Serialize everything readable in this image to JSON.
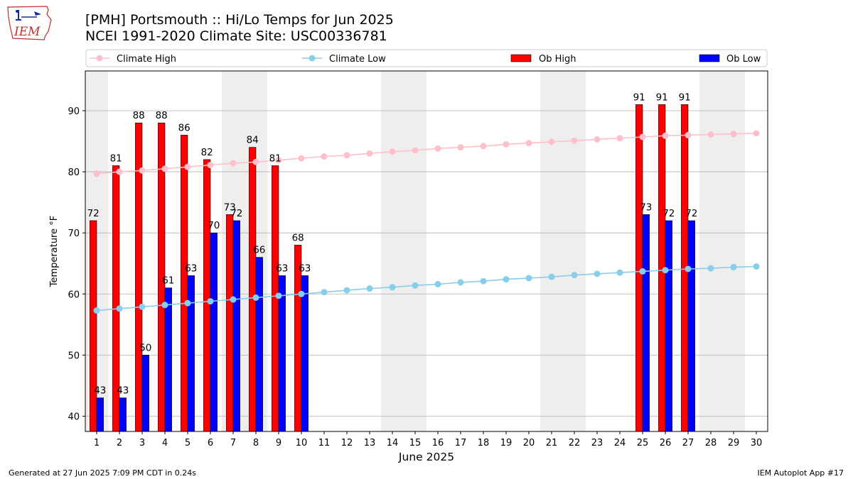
{
  "header": {
    "title_line1": "[PMH] Portsmouth :: Hi/Lo Temps for Jun 2025",
    "title_line2": "NCEI 1991-2020 Climate Site: USC00336781"
  },
  "logo": {
    "text": "IEM"
  },
  "footer": {
    "generated": "Generated at 27 Jun 2025 7:09 PM CDT in 0.24s",
    "app": "IEM Autoplot App #17"
  },
  "colors": {
    "ob_high": "#ff0000",
    "ob_low": "#0000ff",
    "climate_high": "#ffc0cb",
    "climate_low": "#87ceeb",
    "weekend_shade": "#eeeeee",
    "grid": "#b0b0b0"
  },
  "chart_data": {
    "type": "bar",
    "title": "[PMH] Portsmouth :: Hi/Lo Temps for Jun 2025",
    "subtitle": "NCEI 1991-2020 Climate Site: USC00336781",
    "xlabel": "June 2025",
    "ylabel": "Temperature °F",
    "ylim": [
      37.5,
      96.5
    ],
    "yticks": [
      40,
      50,
      60,
      70,
      80,
      90
    ],
    "grid": true,
    "legend_placement": "top",
    "categories": [
      "1",
      "2",
      "3",
      "4",
      "5",
      "6",
      "7",
      "8",
      "9",
      "10",
      "11",
      "12",
      "13",
      "14",
      "15",
      "16",
      "17",
      "18",
      "19",
      "20",
      "21",
      "22",
      "23",
      "24",
      "25",
      "26",
      "27",
      "28",
      "29",
      "30"
    ],
    "shaded_days": [
      1,
      7,
      8,
      14,
      15,
      21,
      22,
      28,
      29
    ],
    "series": [
      {
        "name": "Climate High",
        "kind": "line",
        "values": [
          79.7,
          80.0,
          80.2,
          80.5,
          80.8,
          81.1,
          81.4,
          81.6,
          81.9,
          82.2,
          82.5,
          82.7,
          83.0,
          83.3,
          83.5,
          83.8,
          84.0,
          84.2,
          84.5,
          84.7,
          84.9,
          85.1,
          85.3,
          85.5,
          85.7,
          85.9,
          86.0,
          86.1,
          86.2,
          86.3
        ]
      },
      {
        "name": "Climate Low",
        "kind": "line",
        "values": [
          57.3,
          57.6,
          57.9,
          58.2,
          58.5,
          58.8,
          59.1,
          59.4,
          59.7,
          60.0,
          60.3,
          60.6,
          60.9,
          61.1,
          61.4,
          61.6,
          61.9,
          62.1,
          62.4,
          62.6,
          62.8,
          63.1,
          63.3,
          63.5,
          63.7,
          63.9,
          64.1,
          64.2,
          64.4,
          64.5
        ]
      },
      {
        "name": "Ob High",
        "kind": "bar",
        "values": [
          72,
          81,
          88,
          88,
          86,
          82,
          73,
          84,
          81,
          68,
          null,
          null,
          null,
          null,
          null,
          null,
          null,
          null,
          null,
          null,
          null,
          null,
          null,
          null,
          91,
          91,
          91,
          null,
          null,
          null
        ]
      },
      {
        "name": "Ob Low",
        "kind": "bar",
        "values": [
          43,
          43,
          50,
          61,
          63,
          70,
          72,
          66,
          63,
          63,
          null,
          null,
          null,
          null,
          null,
          null,
          null,
          null,
          null,
          null,
          null,
          null,
          null,
          null,
          73,
          72,
          72,
          null,
          null,
          null
        ]
      }
    ]
  }
}
